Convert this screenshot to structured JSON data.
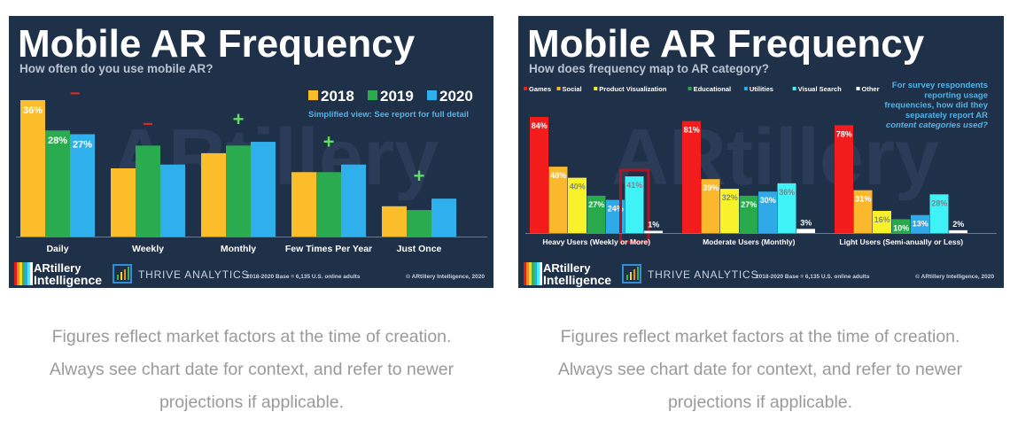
{
  "captions": {
    "line1": "Figures reflect market factors at the time of creation.",
    "line2": "Always see chart date for context, and refer to newer",
    "line3": "projections if applicable."
  },
  "footer": {
    "logo1_line1": "ARtillery",
    "logo1_line2": "Intelligence",
    "logo2": "THRIVE ANALYTICS",
    "base": "2018-2020 Base = 6,135 U.S. online adults",
    "copyright": "© ARtillery Intelligence, 2020"
  },
  "chart_data": [
    {
      "type": "bar",
      "title": "Mobile AR Frequency",
      "subtitle": "How often do you use mobile AR?",
      "note": "Simplified view: See report for full detail",
      "categories": [
        "Daily",
        "Weekly",
        "Monthly",
        "Few Times Per Year",
        "Just Once"
      ],
      "series": [
        {
          "name": "2018",
          "color": "#fbbd2a",
          "values": [
            36,
            18,
            22,
            17,
            8
          ]
        },
        {
          "name": "2019",
          "color": "#2bab4f",
          "values": [
            28,
            24,
            24,
            17,
            7
          ]
        },
        {
          "name": "2020",
          "color": "#2fb0ec",
          "values": [
            27,
            19,
            25,
            19,
            10
          ]
        }
      ],
      "data_labels": {
        "Daily": [
          "36%",
          "28%",
          "27%"
        ]
      },
      "trend_markers": [
        {
          "category": "Daily",
          "symbol": "−",
          "color": "#d62b2b"
        },
        {
          "category": "Weekly",
          "symbol": "−",
          "color": "#d62b2b"
        },
        {
          "category": "Monthly",
          "symbol": "+",
          "color": "#5fe05f"
        },
        {
          "category": "Few Times Per Year",
          "symbol": "+",
          "color": "#5fe05f"
        },
        {
          "category": "Just Once",
          "symbol": "+",
          "color": "#5fe05f"
        }
      ],
      "ylim": [
        0,
        40
      ],
      "legend": "top-right",
      "grid": false
    },
    {
      "type": "bar",
      "title": "Mobile AR Frequency",
      "subtitle": "How does frequency map to AR category?",
      "note": [
        "For survey respondents",
        "reporting usage",
        "frequencies, how did they",
        "separately report AR",
        "content categories used?"
      ],
      "categories": [
        "Heavy Users (Weekly or More)",
        "Moderate Users (Monthly)",
        "Light Users (Semi-anually or Less)"
      ],
      "series": [
        {
          "name": "Games",
          "color": "#f21c1c",
          "values": [
            84,
            81,
            78
          ]
        },
        {
          "name": "Social",
          "color": "#fbb82c",
          "values": [
            48,
            39,
            31
          ]
        },
        {
          "name": "Product Visualization",
          "color": "#f8f22a",
          "values": [
            40,
            32,
            16
          ]
        },
        {
          "name": "Educational",
          "color": "#27a94c",
          "values": [
            27,
            27,
            10
          ]
        },
        {
          "name": "Utilities",
          "color": "#2fa9e8",
          "values": [
            24,
            30,
            13
          ]
        },
        {
          "name": "Visual Search",
          "color": "#3ff2f5",
          "values": [
            41,
            36,
            28
          ]
        },
        {
          "name": "Other",
          "color": "#ffffff",
          "values": [
            1,
            3,
            2
          ]
        }
      ],
      "highlight": {
        "category": "Heavy Users (Weekly or More)",
        "series": "Visual Search",
        "color": "#b3141b"
      },
      "ylim": [
        0,
        100
      ],
      "legend": "top-left",
      "grid": false
    }
  ]
}
